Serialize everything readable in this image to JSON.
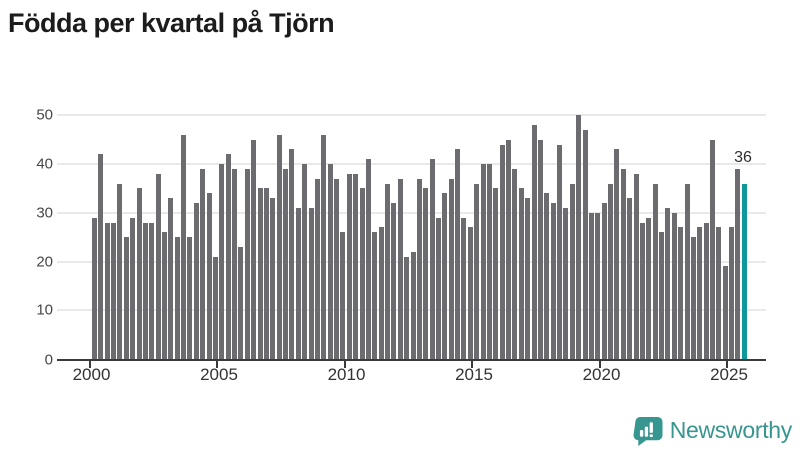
{
  "title": "Födda per kvartal på Tjörn",
  "chart_data": {
    "type": "bar",
    "title": "Födda per kvartal på Tjörn",
    "frequency": "quarterly",
    "x_start": "2000 Q1",
    "x_end": "2025 Q3",
    "values": [
      29,
      42,
      28,
      28,
      36,
      25,
      29,
      35,
      28,
      28,
      38,
      26,
      33,
      25,
      46,
      25,
      32,
      39,
      34,
      21,
      40,
      42,
      39,
      23,
      39,
      45,
      35,
      35,
      33,
      46,
      39,
      43,
      31,
      40,
      31,
      37,
      46,
      40,
      37,
      26,
      38,
      38,
      35,
      41,
      26,
      27,
      36,
      32,
      37,
      21,
      22,
      37,
      35,
      41,
      29,
      34,
      37,
      43,
      29,
      27,
      36,
      40,
      40,
      35,
      44,
      45,
      39,
      35,
      33,
      48,
      45,
      34,
      32,
      44,
      31,
      36,
      50,
      47,
      30,
      30,
      32,
      36,
      43,
      39,
      33,
      38,
      28,
      29,
      36,
      26,
      31,
      30,
      27,
      36,
      25,
      27,
      28,
      45,
      27,
      19,
      27,
      39,
      36
    ],
    "highlight": {
      "index": 102,
      "period": "2025 Q3",
      "value": 36,
      "label": "36"
    },
    "x_tick_labels": [
      "2000",
      "2005",
      "2010",
      "2015",
      "2020",
      "2025"
    ],
    "y_ticks": [
      "0",
      "10",
      "20",
      "30",
      "40",
      "50"
    ],
    "ylim": [
      0,
      50
    ],
    "grid": "horizontal",
    "legend_position": "none",
    "bar_color": "#6b6b70",
    "highlight_color": "#0f989c",
    "axis_color": "#3a3a3a",
    "grid_color": "#e9e9e9",
    "tick_label_color": "#333333",
    "y_label_color": "#474747"
  },
  "logo": {
    "text": "Newsworthy",
    "color": "#37968f",
    "icon": "bar-chart-speech-bubble-icon"
  }
}
